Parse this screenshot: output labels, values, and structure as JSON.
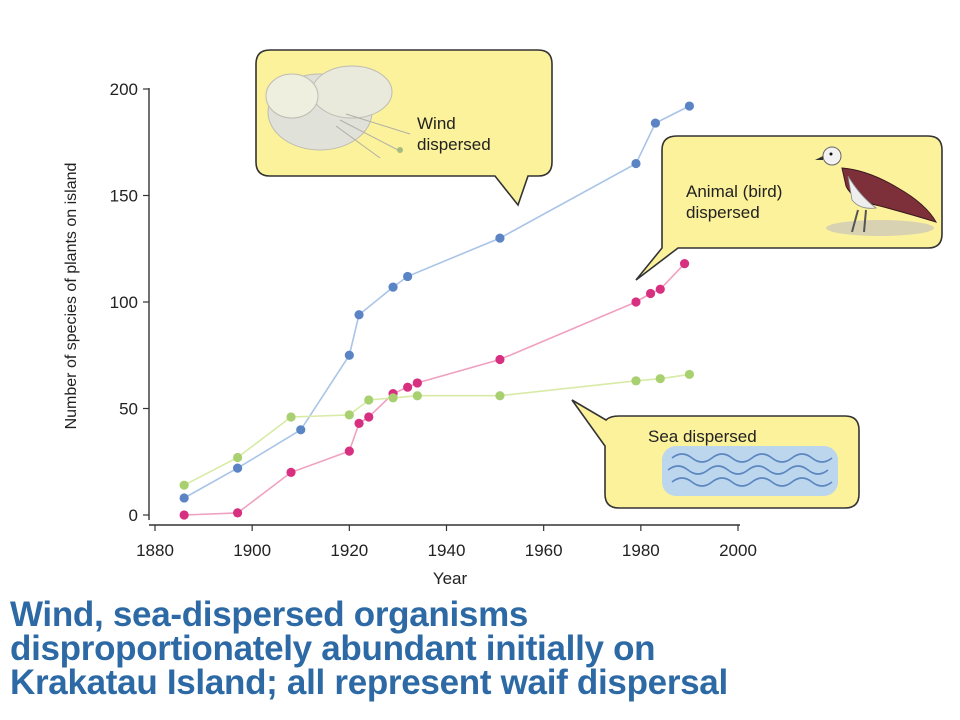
{
  "chart_data": {
    "type": "line",
    "xlabel": "Year",
    "ylabel": "Number of species of plants on island",
    "xlim": [
      1880,
      2000
    ],
    "ylim": [
      0,
      200
    ],
    "x_ticks": [
      1880,
      1900,
      1920,
      1940,
      1960,
      1980,
      2000
    ],
    "y_ticks": [
      0,
      50,
      100,
      150,
      200
    ],
    "grid": false,
    "series": [
      {
        "name": "Wind dispersed",
        "color_line": "#a9c4e8",
        "color_point": "#5b84c4",
        "points": [
          [
            1886,
            8
          ],
          [
            1897,
            22
          ],
          [
            1910,
            40
          ],
          [
            1920,
            75
          ],
          [
            1922,
            94
          ],
          [
            1929,
            107
          ],
          [
            1932,
            112
          ],
          [
            1951,
            130
          ],
          [
            1979,
            165
          ],
          [
            1983,
            184
          ],
          [
            1990,
            192
          ]
        ]
      },
      {
        "name": "Animal (bird) dispersed",
        "color_line": "#f0a0c0",
        "color_point": "#d83080",
        "points": [
          [
            1886,
            0
          ],
          [
            1897,
            1
          ],
          [
            1908,
            20
          ],
          [
            1920,
            30
          ],
          [
            1922,
            43
          ],
          [
            1924,
            46
          ],
          [
            1929,
            57
          ],
          [
            1932,
            60
          ],
          [
            1934,
            62
          ],
          [
            1951,
            73
          ],
          [
            1979,
            100
          ],
          [
            1982,
            104
          ],
          [
            1984,
            106
          ],
          [
            1989,
            118
          ]
        ]
      },
      {
        "name": "Sea dispersed",
        "color_line": "#d8eba6",
        "color_point": "#a9d070",
        "points": [
          [
            1886,
            14
          ],
          [
            1897,
            27
          ],
          [
            1908,
            46
          ],
          [
            1920,
            47
          ],
          [
            1924,
            54
          ],
          [
            1929,
            55
          ],
          [
            1934,
            56
          ],
          [
            1951,
            56
          ],
          [
            1979,
            63
          ],
          [
            1984,
            64
          ],
          [
            1990,
            66
          ]
        ]
      }
    ],
    "callouts": [
      {
        "label_lines": [
          "Wind",
          "dispersed"
        ]
      },
      {
        "label_lines": [
          "Animal (bird)",
          "dispersed"
        ]
      },
      {
        "label_lines": [
          "Sea dispersed"
        ]
      }
    ]
  },
  "colors": {
    "bubble_fill": "#fbf29b",
    "caption": "#2d6aa5"
  },
  "caption_lines": [
    "Wind, sea-dispersed organisms",
    "disproportionately abundant initially on",
    "Krakatau Island; all represent waif dispersal"
  ]
}
